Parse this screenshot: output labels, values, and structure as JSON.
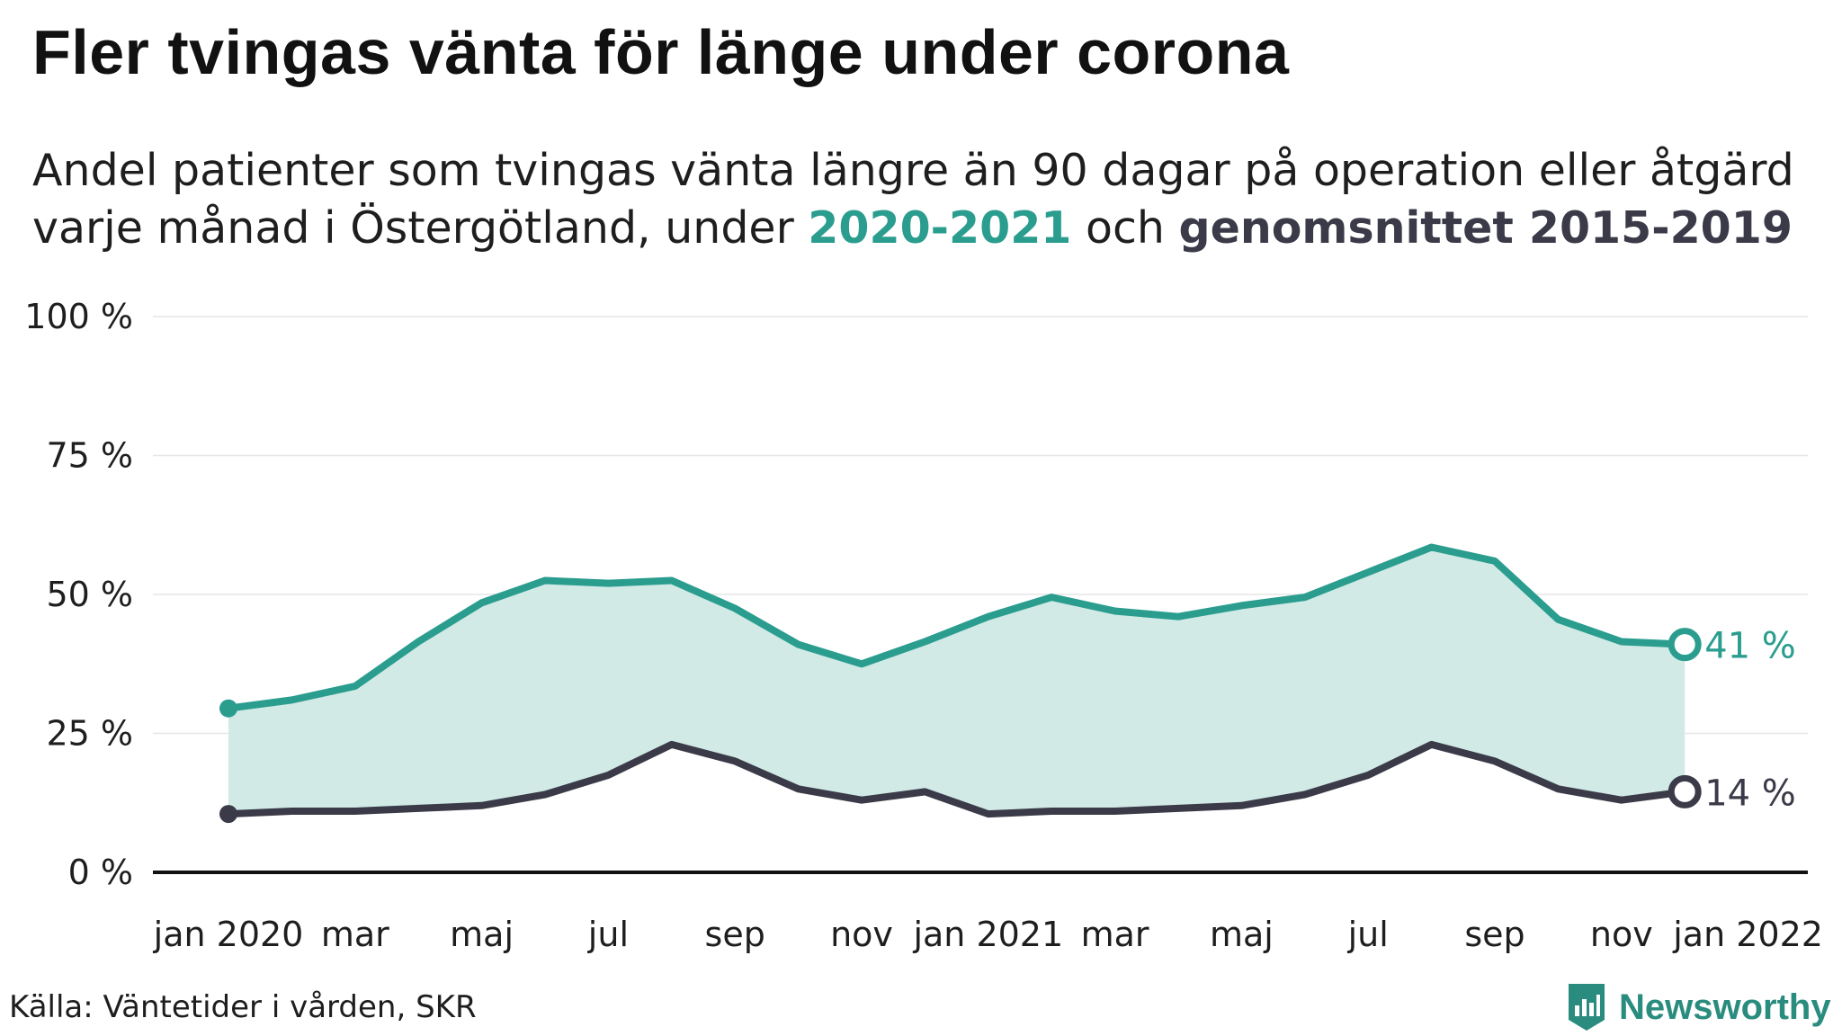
{
  "title": "Fler tvingas vänta för länge under corona",
  "subtitle": {
    "line1": "Andel patienter som tvingas vänta längre än 90 dagar på operation eller åtgärd",
    "line2_prefix": "varje månad i Östergötland, under ",
    "highlight_current": "2020-2021",
    "middle": " och ",
    "highlight_average": "genomsnittet 2015-2019"
  },
  "colors": {
    "current": "#2a9d8f",
    "average": "#3a3a48",
    "area": "#d1eae6",
    "grid": "#e6e6e6",
    "axis": "#111111"
  },
  "chart_data": {
    "type": "line",
    "x": [
      "2020-01",
      "2020-02",
      "2020-03",
      "2020-04",
      "2020-05",
      "2020-06",
      "2020-07",
      "2020-08",
      "2020-09",
      "2020-10",
      "2020-11",
      "2020-12",
      "2021-01",
      "2021-02",
      "2021-03",
      "2021-04",
      "2021-05",
      "2021-06",
      "2021-07",
      "2021-08",
      "2021-09",
      "2021-10",
      "2021-11",
      "2021-12"
    ],
    "x_tick_labels": [
      "jan 2020",
      "mar",
      "maj",
      "jul",
      "sep",
      "nov",
      "jan 2021",
      "mar",
      "maj",
      "jul",
      "sep",
      "nov",
      "jan 2022"
    ],
    "x_tick_dates": [
      "2020-01",
      "2020-03",
      "2020-05",
      "2020-07",
      "2020-09",
      "2020-11",
      "2021-01",
      "2021-03",
      "2021-05",
      "2021-07",
      "2021-09",
      "2021-11",
      "2022-01"
    ],
    "ylim": [
      0,
      100
    ],
    "y_ticks": [
      0,
      25,
      50,
      75,
      100
    ],
    "y_tick_labels": [
      "0 %",
      "25 %",
      "50 %",
      "75 %",
      "100 %"
    ],
    "grid": true,
    "series": [
      {
        "name": "2020-2021",
        "values": [
          29.5,
          31,
          33.5,
          41.5,
          48.5,
          52.5,
          52,
          52.5,
          47.5,
          41,
          37.5,
          41.5,
          46,
          49.5,
          47,
          46,
          48,
          49.5,
          54,
          58.5,
          56,
          45.5,
          41.5,
          41
        ],
        "end_label": "41 %"
      },
      {
        "name": "genomsnittet 2015-2019",
        "values": [
          10.5,
          11,
          11,
          11.5,
          12,
          14,
          17.5,
          23,
          20,
          15,
          13,
          14.5,
          10.5,
          11,
          11,
          11.5,
          12,
          14,
          17.5,
          23,
          20,
          15,
          13,
          14.5
        ],
        "end_label": "14 %"
      }
    ],
    "shaded_between_series": true
  },
  "source": "Källa: Väntetider i vården, SKR",
  "brand": {
    "name": "Newsworthy",
    "logo_icon": "newsworthy-logo-icon"
  }
}
